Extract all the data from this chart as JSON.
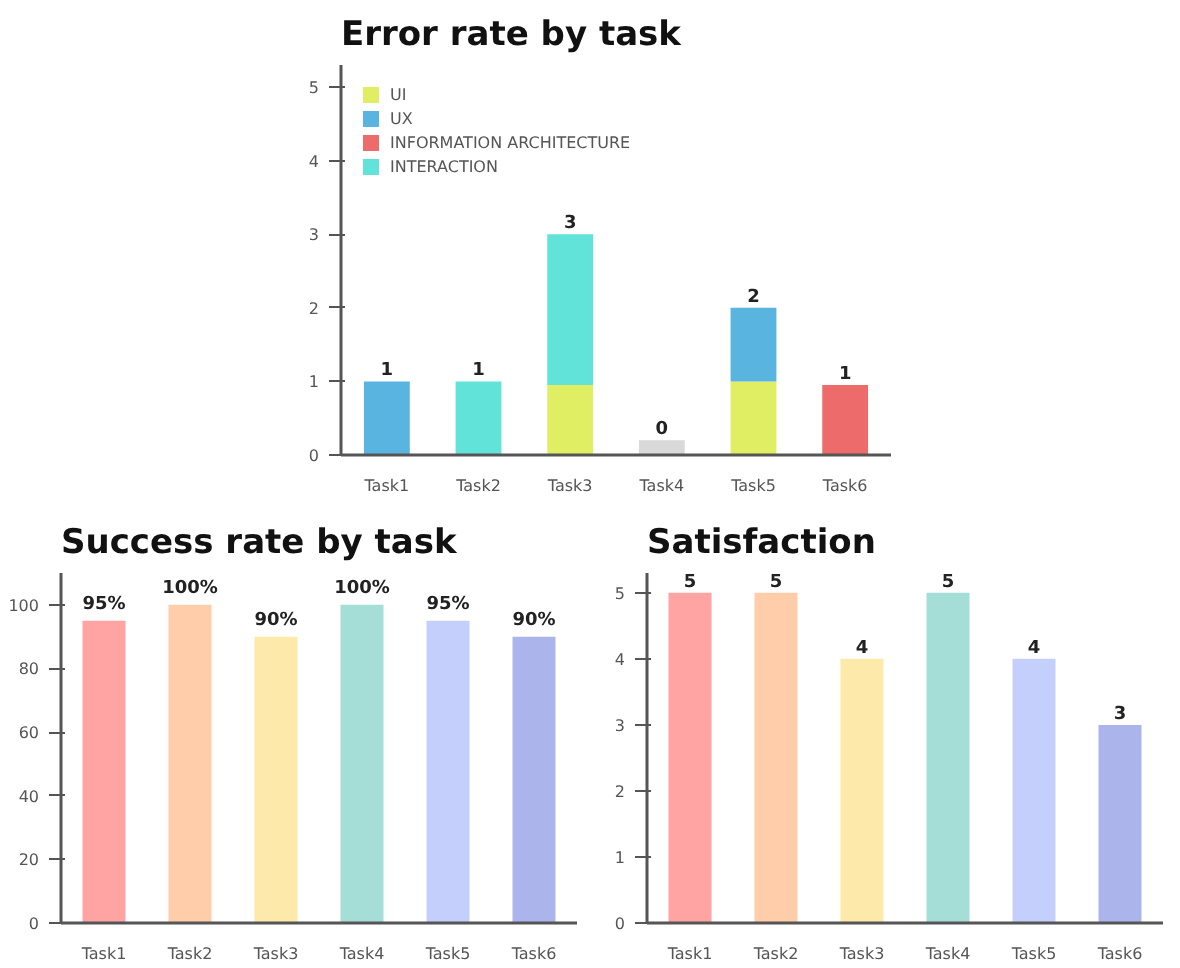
{
  "chart_data": [
    {
      "type": "bar",
      "title": "Error rate by task",
      "categories": [
        "Task1",
        "Task2",
        "Task3",
        "Task4",
        "Task5",
        "Task6"
      ],
      "stacked": true,
      "ylim": [
        0,
        5.3
      ],
      "yticks": [
        0,
        1,
        2,
        3,
        4,
        5
      ],
      "grid": false,
      "legend": "top left",
      "series": [
        {
          "name": "UI",
          "color": "#dfee63",
          "values": [
            null,
            null,
            0.95,
            null,
            1,
            null
          ]
        },
        {
          "name": "UX",
          "color": "#5ab4e0",
          "values": [
            1,
            null,
            null,
            null,
            1,
            null
          ]
        },
        {
          "name": "INFORMATION ARCHITECTURE",
          "color": "#ee6b6b",
          "values": [
            null,
            null,
            null,
            null,
            null,
            0.95
          ]
        },
        {
          "name": "INTERACTION",
          "color": "#62e3da",
          "values": [
            null,
            1,
            2.05,
            null,
            null,
            null
          ]
        },
        {
          "color": "#d9d9d9",
          "values": [
            null,
            null,
            null,
            0.2,
            null,
            null
          ]
        }
      ],
      "totals": [
        "1",
        "1",
        "3",
        "0",
        "2",
        "1"
      ]
    },
    {
      "type": "bar",
      "title": "Success rate by task",
      "categories": [
        "Task1",
        "Task2",
        "Task3",
        "Task4",
        "Task5",
        "Task6"
      ],
      "ylim": [
        0,
        110
      ],
      "yticks": [
        0,
        20,
        40,
        60,
        80,
        100
      ],
      "grid": false,
      "values": [
        95,
        100,
        90,
        100,
        95,
        90
      ],
      "colors": [
        "#ffa3a3",
        "#ffcdaa",
        "#fdeaaa",
        "#a5ded6",
        "#c5cffc",
        "#abb5eb"
      ],
      "value_labels": [
        "95%",
        "100%",
        "90%",
        "100%",
        "95%",
        "90%"
      ]
    },
    {
      "type": "bar",
      "title": "Satisfaction",
      "categories": [
        "Task1",
        "Task2",
        "Task3",
        "Task4",
        "Task5",
        "Task6"
      ],
      "ylim": [
        0,
        5.3
      ],
      "yticks": [
        0,
        1,
        2,
        3,
        4,
        5
      ],
      "grid": false,
      "values": [
        5,
        5,
        4,
        5,
        4,
        3
      ],
      "colors": [
        "#ffa3a3",
        "#ffcdaa",
        "#fdeaaa",
        "#a5ded6",
        "#c5cffc",
        "#abb5eb"
      ],
      "data_labels": true
    }
  ]
}
